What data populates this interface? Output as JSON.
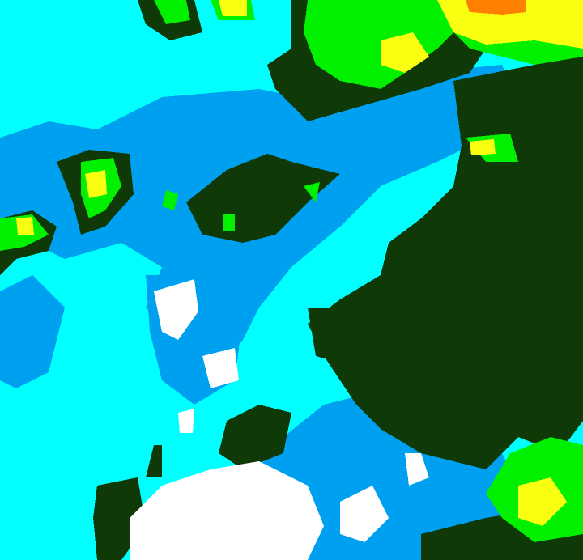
{
  "map": {
    "type": "radar-reflectivity-classification",
    "colors": {
      "background": "#00ffff",
      "light_blue": "#00a0f0",
      "dark_green": "#0f3a08",
      "green": "#00f000",
      "yellow": "#f8ff10",
      "orange": "#ff8000",
      "white": "#ffffff"
    }
  }
}
